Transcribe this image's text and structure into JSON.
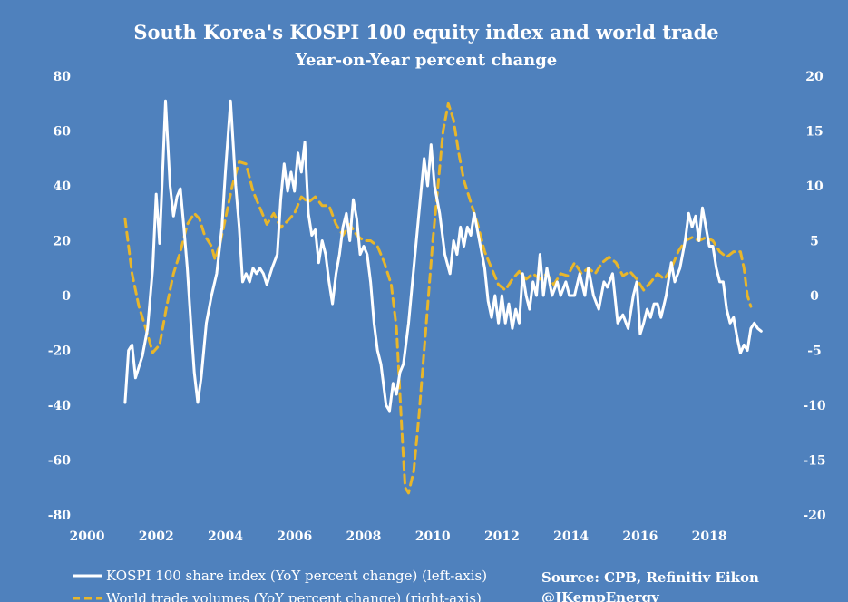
{
  "chart_data": {
    "type": "line",
    "title": "South Korea's KOSPI 100 equity index and world trade",
    "subtitle": "Year-on-Year percent change",
    "x_ticks": [
      "2000",
      "2002",
      "2004",
      "2006",
      "2008",
      "2010",
      "2012",
      "2014",
      "2016",
      "2018"
    ],
    "xlim": [
      2000,
      2020.2
    ],
    "y_left_ticks": [
      "80",
      "60",
      "40",
      "20",
      "0",
      "-20",
      "-40",
      "-60",
      "-80"
    ],
    "ylim_left": [
      -80,
      80
    ],
    "y_right_ticks": [
      "20",
      "15",
      "10",
      "5",
      "0",
      "-5",
      "-10",
      "-15",
      "-20"
    ],
    "ylim_right": [
      -20,
      20
    ],
    "grid": false,
    "legend_position": "bottom-left",
    "series": [
      {
        "name": "KOSPI 100 share index (YoY percent change) (left-axis)",
        "axis": "left",
        "color": "#ffffff",
        "style": "solid",
        "points": [
          [
            2001.1,
            -39
          ],
          [
            2001.2,
            -20
          ],
          [
            2001.3,
            -18
          ],
          [
            2001.4,
            -30
          ],
          [
            2001.5,
            -26
          ],
          [
            2001.6,
            -22
          ],
          [
            2001.75,
            -12
          ],
          [
            2001.9,
            10
          ],
          [
            2002.0,
            37
          ],
          [
            2002.1,
            19
          ],
          [
            2002.2,
            50
          ],
          [
            2002.27,
            71
          ],
          [
            2002.4,
            40
          ],
          [
            2002.5,
            29
          ],
          [
            2002.6,
            36
          ],
          [
            2002.7,
            39
          ],
          [
            2002.8,
            25
          ],
          [
            2002.9,
            10
          ],
          [
            2003.0,
            -10
          ],
          [
            2003.1,
            -28
          ],
          [
            2003.2,
            -39
          ],
          [
            2003.3,
            -30
          ],
          [
            2003.45,
            -10
          ],
          [
            2003.6,
            0
          ],
          [
            2003.75,
            8
          ],
          [
            2003.9,
            25
          ],
          [
            2004.0,
            45
          ],
          [
            2004.15,
            71
          ],
          [
            2004.3,
            40
          ],
          [
            2004.4,
            25
          ],
          [
            2004.5,
            5
          ],
          [
            2004.6,
            8
          ],
          [
            2004.7,
            5
          ],
          [
            2004.8,
            10
          ],
          [
            2004.9,
            8
          ],
          [
            2005.0,
            10
          ],
          [
            2005.1,
            8
          ],
          [
            2005.2,
            4
          ],
          [
            2005.35,
            10
          ],
          [
            2005.5,
            15
          ],
          [
            2005.6,
            35
          ],
          [
            2005.7,
            48
          ],
          [
            2005.8,
            38
          ],
          [
            2005.9,
            45
          ],
          [
            2006.0,
            38
          ],
          [
            2006.1,
            52
          ],
          [
            2006.2,
            45
          ],
          [
            2006.3,
            56
          ],
          [
            2006.4,
            30
          ],
          [
            2006.5,
            22
          ],
          [
            2006.6,
            24
          ],
          [
            2006.7,
            12
          ],
          [
            2006.8,
            20
          ],
          [
            2006.9,
            15
          ],
          [
            2007.0,
            5
          ],
          [
            2007.1,
            -3
          ],
          [
            2007.2,
            8
          ],
          [
            2007.3,
            15
          ],
          [
            2007.4,
            25
          ],
          [
            2007.5,
            30
          ],
          [
            2007.6,
            20
          ],
          [
            2007.7,
            35
          ],
          [
            2007.8,
            28
          ],
          [
            2007.9,
            15
          ],
          [
            2008.0,
            18
          ],
          [
            2008.1,
            15
          ],
          [
            2008.2,
            5
          ],
          [
            2008.3,
            -10
          ],
          [
            2008.4,
            -20
          ],
          [
            2008.5,
            -25
          ],
          [
            2008.65,
            -40
          ],
          [
            2008.75,
            -42
          ],
          [
            2008.85,
            -32
          ],
          [
            2008.95,
            -36
          ],
          [
            2009.05,
            -28
          ],
          [
            2009.15,
            -25
          ],
          [
            2009.3,
            -10
          ],
          [
            2009.45,
            10
          ],
          [
            2009.6,
            30
          ],
          [
            2009.75,
            50
          ],
          [
            2009.85,
            40
          ],
          [
            2009.95,
            55
          ],
          [
            2010.05,
            40
          ],
          [
            2010.2,
            30
          ],
          [
            2010.35,
            15
          ],
          [
            2010.5,
            8
          ],
          [
            2010.6,
            20
          ],
          [
            2010.7,
            15
          ],
          [
            2010.8,
            25
          ],
          [
            2010.9,
            18
          ],
          [
            2011.0,
            25
          ],
          [
            2011.1,
            22
          ],
          [
            2011.2,
            30
          ],
          [
            2011.35,
            20
          ],
          [
            2011.5,
            10
          ],
          [
            2011.6,
            -2
          ],
          [
            2011.7,
            -8
          ],
          [
            2011.8,
            0
          ],
          [
            2011.9,
            -10
          ],
          [
            2012.0,
            0
          ],
          [
            2012.1,
            -10
          ],
          [
            2012.2,
            -3
          ],
          [
            2012.3,
            -12
          ],
          [
            2012.4,
            -5
          ],
          [
            2012.5,
            -10
          ],
          [
            2012.6,
            8
          ],
          [
            2012.7,
            0
          ],
          [
            2012.8,
            -5
          ],
          [
            2012.9,
            5
          ],
          [
            2013.0,
            0
          ],
          [
            2013.1,
            15
          ],
          [
            2013.2,
            0
          ],
          [
            2013.3,
            10
          ],
          [
            2013.45,
            0
          ],
          [
            2013.6,
            5
          ],
          [
            2013.7,
            0
          ],
          [
            2013.85,
            5
          ],
          [
            2013.95,
            0
          ],
          [
            2014.1,
            0
          ],
          [
            2014.25,
            8
          ],
          [
            2014.4,
            0
          ],
          [
            2014.5,
            10
          ],
          [
            2014.65,
            0
          ],
          [
            2014.8,
            -5
          ],
          [
            2014.95,
            5
          ],
          [
            2015.05,
            3
          ],
          [
            2015.2,
            8
          ],
          [
            2015.35,
            -10
          ],
          [
            2015.5,
            -7
          ],
          [
            2015.65,
            -12
          ],
          [
            2015.8,
            0
          ],
          [
            2015.9,
            5
          ],
          [
            2016.0,
            -14
          ],
          [
            2016.1,
            -10
          ],
          [
            2016.2,
            -5
          ],
          [
            2016.3,
            -8
          ],
          [
            2016.4,
            -3
          ],
          [
            2016.5,
            -3
          ],
          [
            2016.6,
            -8
          ],
          [
            2016.75,
            0
          ],
          [
            2016.9,
            12
          ],
          [
            2017.0,
            5
          ],
          [
            2017.15,
            10
          ],
          [
            2017.3,
            20
          ],
          [
            2017.4,
            30
          ],
          [
            2017.5,
            25
          ],
          [
            2017.6,
            29
          ],
          [
            2017.7,
            20
          ],
          [
            2017.8,
            32
          ],
          [
            2017.9,
            25
          ],
          [
            2018.0,
            18
          ],
          [
            2018.1,
            18
          ],
          [
            2018.2,
            10
          ],
          [
            2018.3,
            5
          ],
          [
            2018.4,
            5
          ],
          [
            2018.5,
            -5
          ],
          [
            2018.6,
            -10
          ],
          [
            2018.7,
            -8
          ],
          [
            2018.8,
            -15
          ],
          [
            2018.9,
            -21
          ],
          [
            2019.0,
            -18
          ],
          [
            2019.1,
            -20
          ],
          [
            2019.2,
            -12
          ],
          [
            2019.3,
            -10
          ],
          [
            2019.4,
            -12
          ],
          [
            2019.5,
            -13
          ]
        ]
      },
      {
        "name": "World trade volumes (YoY percent change) (right-axis)",
        "axis": "right",
        "color": "#e8b62a",
        "style": "dashed",
        "points": [
          [
            2001.1,
            7
          ],
          [
            2001.3,
            2
          ],
          [
            2001.5,
            -1
          ],
          [
            2001.7,
            -3
          ],
          [
            2001.9,
            -5.2
          ],
          [
            2002.1,
            -4.5
          ],
          [
            2002.3,
            -1
          ],
          [
            2002.5,
            2
          ],
          [
            2002.7,
            4
          ],
          [
            2002.9,
            6.5
          ],
          [
            2003.1,
            7.5
          ],
          [
            2003.25,
            7
          ],
          [
            2003.4,
            5.5
          ],
          [
            2003.6,
            4.5
          ],
          [
            2003.7,
            3.3
          ],
          [
            2003.85,
            4.8
          ],
          [
            2004.0,
            7
          ],
          [
            2004.2,
            10
          ],
          [
            2004.4,
            12.2
          ],
          [
            2004.6,
            12
          ],
          [
            2004.8,
            9.5
          ],
          [
            2005.0,
            8
          ],
          [
            2005.2,
            6.5
          ],
          [
            2005.4,
            7.5
          ],
          [
            2005.6,
            6.2
          ],
          [
            2005.8,
            6.8
          ],
          [
            2006.0,
            7.5
          ],
          [
            2006.2,
            9
          ],
          [
            2006.4,
            8.5
          ],
          [
            2006.6,
            9
          ],
          [
            2006.8,
            8.2
          ],
          [
            2007.0,
            8.2
          ],
          [
            2007.2,
            6.5
          ],
          [
            2007.4,
            5.5
          ],
          [
            2007.6,
            6.5
          ],
          [
            2007.8,
            5.5
          ],
          [
            2008.0,
            5
          ],
          [
            2008.2,
            5
          ],
          [
            2008.4,
            4.5
          ],
          [
            2008.6,
            3
          ],
          [
            2008.8,
            1
          ],
          [
            2008.95,
            -3
          ],
          [
            2009.1,
            -12
          ],
          [
            2009.2,
            -17.5
          ],
          [
            2009.3,
            -18
          ],
          [
            2009.45,
            -16
          ],
          [
            2009.6,
            -11
          ],
          [
            2009.8,
            -3
          ],
          [
            2010.0,
            5
          ],
          [
            2010.15,
            10
          ],
          [
            2010.3,
            15
          ],
          [
            2010.45,
            17.5
          ],
          [
            2010.6,
            16
          ],
          [
            2010.75,
            13
          ],
          [
            2010.9,
            10.5
          ],
          [
            2011.1,
            8.5
          ],
          [
            2011.3,
            6.5
          ],
          [
            2011.5,
            4
          ],
          [
            2011.7,
            2.5
          ],
          [
            2011.9,
            1
          ],
          [
            2012.1,
            0.5
          ],
          [
            2012.3,
            1.5
          ],
          [
            2012.5,
            2.2
          ],
          [
            2012.7,
            1.5
          ],
          [
            2012.9,
            2
          ],
          [
            2013.1,
            1.5
          ],
          [
            2013.3,
            2
          ],
          [
            2013.5,
            1
          ],
          [
            2013.7,
            2
          ],
          [
            2013.9,
            1.8
          ],
          [
            2014.1,
            3
          ],
          [
            2014.3,
            2
          ],
          [
            2014.5,
            2.5
          ],
          [
            2014.7,
            2
          ],
          [
            2014.9,
            3
          ],
          [
            2015.1,
            3.5
          ],
          [
            2015.3,
            3
          ],
          [
            2015.5,
            1.8
          ],
          [
            2015.7,
            2.2
          ],
          [
            2015.9,
            1.5
          ],
          [
            2016.1,
            0.5
          ],
          [
            2016.3,
            1.2
          ],
          [
            2016.5,
            2
          ],
          [
            2016.7,
            1.5
          ],
          [
            2016.9,
            2.5
          ],
          [
            2017.1,
            4
          ],
          [
            2017.3,
            5
          ],
          [
            2017.5,
            5.3
          ],
          [
            2017.7,
            5
          ],
          [
            2017.9,
            5.3
          ],
          [
            2018.1,
            5
          ],
          [
            2018.3,
            4
          ],
          [
            2018.5,
            3.5
          ],
          [
            2018.7,
            4
          ],
          [
            2018.9,
            4
          ],
          [
            2019.0,
            2.5
          ],
          [
            2019.1,
            0
          ],
          [
            2019.2,
            -1
          ]
        ]
      }
    ],
    "annotations": [
      "Source: CPB, Refinitiv Eikon",
      "@JKempEnergy"
    ]
  }
}
